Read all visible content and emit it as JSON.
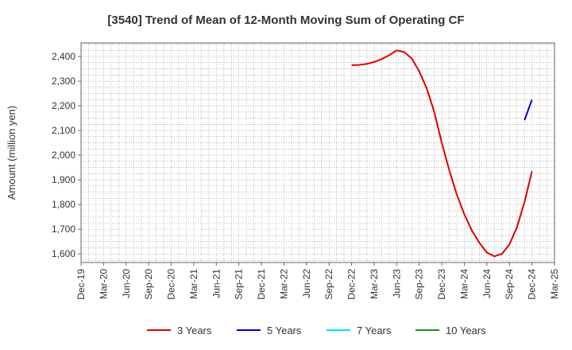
{
  "chart_data": {
    "type": "line",
    "title": "[3540]  Trend of Mean of 12-Month Moving Sum of Operating CF",
    "ylabel": "Amount (million yen)",
    "xlabel": "",
    "ylim": [
      1565,
      2455
    ],
    "yticks": [
      1600,
      1700,
      1800,
      1900,
      2000,
      2100,
      2200,
      2300,
      2400
    ],
    "ytick_labels": [
      "1,600",
      "1,700",
      "1,800",
      "1,900",
      "2,000",
      "2,100",
      "2,200",
      "2,300",
      "2,400"
    ],
    "x_tick_labels": [
      "Dec-19",
      "Mar-20",
      "Jun-20",
      "Sep-20",
      "Dec-20",
      "Mar-21",
      "Jun-21",
      "Sep-21",
      "Dec-21",
      "Mar-22",
      "Jun-22",
      "Sep-22",
      "Dec-22",
      "Mar-23",
      "Jun-23",
      "Sep-23",
      "Dec-23",
      "Mar-24",
      "Jun-24",
      "Sep-24",
      "Dec-24",
      "Mar-25"
    ],
    "grid": true,
    "legend_position": "bottom",
    "series": [
      {
        "name": "3 Years",
        "color": "#dd0000",
        "x": [
          "Dec-22",
          "Jan-23",
          "Feb-23",
          "Mar-23",
          "Apr-23",
          "May-23",
          "Jun-23",
          "Jul-23",
          "Aug-23",
          "Sep-23",
          "Oct-23",
          "Nov-23",
          "Dec-23",
          "Jan-24",
          "Feb-24",
          "Mar-24",
          "Apr-24",
          "May-24",
          "Jun-24",
          "Jul-24",
          "Aug-24",
          "Sep-24",
          "Oct-24",
          "Nov-24",
          "Dec-24"
        ],
        "y": [
          2365,
          2366,
          2370,
          2378,
          2390,
          2405,
          2425,
          2418,
          2392,
          2340,
          2270,
          2175,
          2050,
          1938,
          1840,
          1760,
          1695,
          1645,
          1605,
          1590,
          1600,
          1638,
          1708,
          1810,
          1935
        ]
      },
      {
        "name": "5 Years",
        "color": "#0000cc",
        "x": [
          "Nov-24",
          "Dec-24"
        ],
        "y": [
          2142,
          2225
        ]
      },
      {
        "name": "7 Years",
        "color": "#00e5ee",
        "x": [],
        "y": []
      },
      {
        "name": "10 Years",
        "color": "#228b22",
        "x": [],
        "y": []
      }
    ]
  }
}
